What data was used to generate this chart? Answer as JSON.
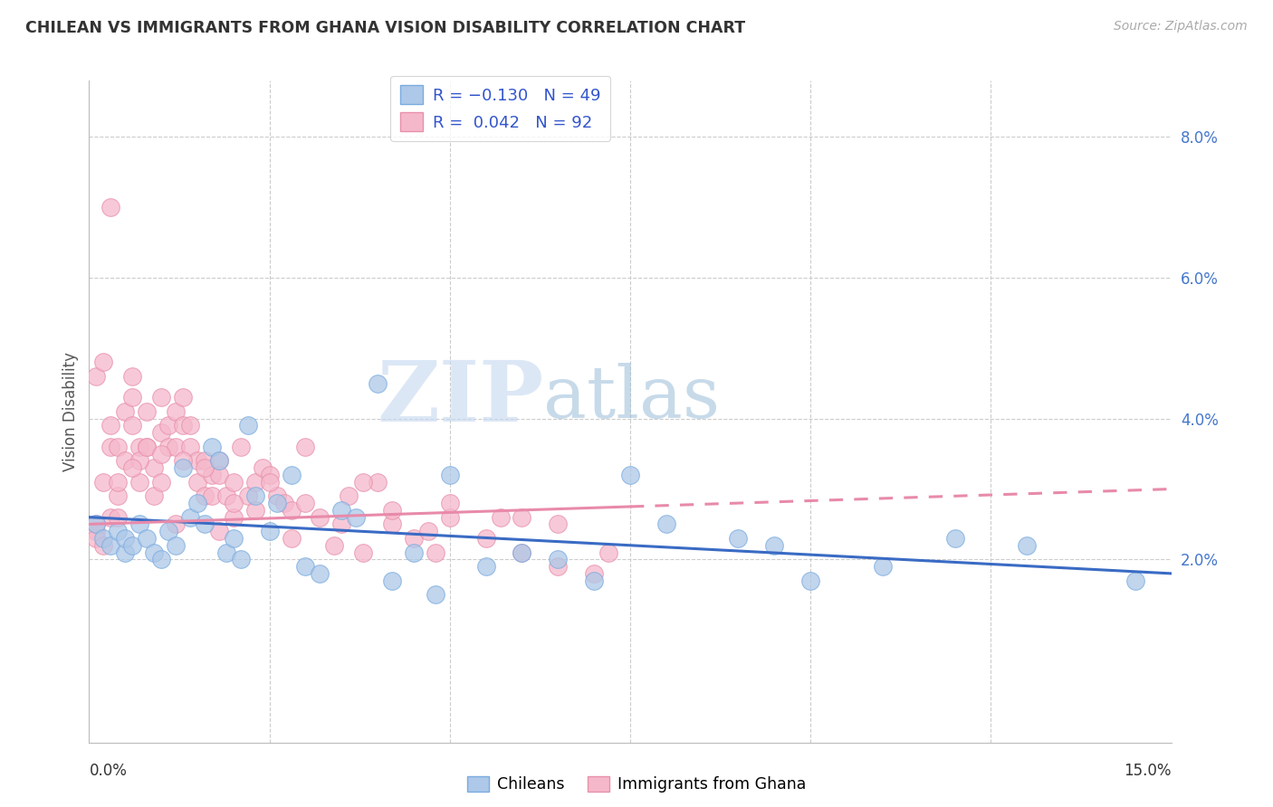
{
  "title": "CHILEAN VS IMMIGRANTS FROM GHANA VISION DISABILITY CORRELATION CHART",
  "source": "Source: ZipAtlas.com",
  "ylabel": "Vision Disability",
  "y_ticks_right": [
    0.02,
    0.04,
    0.06,
    0.08
  ],
  "y_tick_labels_right": [
    "2.0%",
    "4.0%",
    "6.0%",
    "8.0%"
  ],
  "xlim": [
    0.0,
    0.15
  ],
  "ylim": [
    -0.006,
    0.088
  ],
  "chilean_color": "#adc8e8",
  "ghana_color": "#f5b8cb",
  "chilean_edge": "#7aace0",
  "ghana_edge": "#e890aa",
  "trend_blue": "#3a6bc4",
  "trend_pink": "#e88aaa",
  "watermark_zip": "#c8d8ef",
  "watermark_atlas": "#b0c8e8",
  "chilean_x": [
    0.001,
    0.002,
    0.003,
    0.004,
    0.005,
    0.005,
    0.006,
    0.007,
    0.008,
    0.009,
    0.01,
    0.011,
    0.012,
    0.013,
    0.014,
    0.015,
    0.016,
    0.017,
    0.018,
    0.019,
    0.02,
    0.021,
    0.022,
    0.023,
    0.025,
    0.026,
    0.028,
    0.03,
    0.032,
    0.035,
    0.037,
    0.04,
    0.042,
    0.045,
    0.048,
    0.05,
    0.055,
    0.06,
    0.065,
    0.07,
    0.075,
    0.08,
    0.09,
    0.095,
    0.1,
    0.11,
    0.12,
    0.13,
    0.145
  ],
  "chilean_y": [
    0.025,
    0.023,
    0.022,
    0.024,
    0.021,
    0.023,
    0.022,
    0.025,
    0.023,
    0.021,
    0.02,
    0.024,
    0.022,
    0.033,
    0.026,
    0.028,
    0.025,
    0.036,
    0.034,
    0.021,
    0.023,
    0.02,
    0.039,
    0.029,
    0.024,
    0.028,
    0.032,
    0.019,
    0.018,
    0.027,
    0.026,
    0.045,
    0.017,
    0.021,
    0.015,
    0.032,
    0.019,
    0.021,
    0.02,
    0.017,
    0.032,
    0.025,
    0.023,
    0.022,
    0.017,
    0.019,
    0.023,
    0.022,
    0.017
  ],
  "ghana_x": [
    0.001,
    0.001,
    0.001,
    0.002,
    0.002,
    0.003,
    0.003,
    0.003,
    0.004,
    0.004,
    0.004,
    0.005,
    0.005,
    0.006,
    0.006,
    0.006,
    0.007,
    0.007,
    0.008,
    0.008,
    0.009,
    0.009,
    0.01,
    0.01,
    0.01,
    0.011,
    0.011,
    0.012,
    0.012,
    0.013,
    0.013,
    0.014,
    0.014,
    0.015,
    0.015,
    0.016,
    0.016,
    0.017,
    0.017,
    0.018,
    0.018,
    0.019,
    0.02,
    0.02,
    0.021,
    0.022,
    0.023,
    0.024,
    0.025,
    0.026,
    0.027,
    0.028,
    0.03,
    0.032,
    0.034,
    0.036,
    0.038,
    0.04,
    0.042,
    0.045,
    0.048,
    0.05,
    0.055,
    0.06,
    0.065,
    0.07,
    0.003,
    0.007,
    0.012,
    0.018,
    0.023,
    0.028,
    0.035,
    0.042,
    0.05,
    0.06,
    0.001,
    0.002,
    0.004,
    0.006,
    0.008,
    0.01,
    0.013,
    0.016,
    0.02,
    0.025,
    0.03,
    0.038,
    0.047,
    0.057,
    0.065,
    0.072
  ],
  "ghana_y": [
    0.024,
    0.023,
    0.046,
    0.031,
    0.048,
    0.039,
    0.026,
    0.036,
    0.026,
    0.029,
    0.036,
    0.041,
    0.034,
    0.046,
    0.043,
    0.039,
    0.031,
    0.036,
    0.041,
    0.036,
    0.029,
    0.033,
    0.038,
    0.031,
    0.043,
    0.039,
    0.036,
    0.041,
    0.036,
    0.039,
    0.043,
    0.039,
    0.036,
    0.034,
    0.031,
    0.029,
    0.034,
    0.032,
    0.029,
    0.034,
    0.032,
    0.029,
    0.026,
    0.031,
    0.036,
    0.029,
    0.031,
    0.033,
    0.032,
    0.029,
    0.028,
    0.027,
    0.028,
    0.026,
    0.022,
    0.029,
    0.021,
    0.031,
    0.025,
    0.023,
    0.021,
    0.026,
    0.023,
    0.021,
    0.019,
    0.018,
    0.07,
    0.034,
    0.025,
    0.024,
    0.027,
    0.023,
    0.025,
    0.027,
    0.028,
    0.026,
    0.025,
    0.022,
    0.031,
    0.033,
    0.036,
    0.035,
    0.034,
    0.033,
    0.028,
    0.031,
    0.036,
    0.031,
    0.024,
    0.026,
    0.025,
    0.021
  ]
}
